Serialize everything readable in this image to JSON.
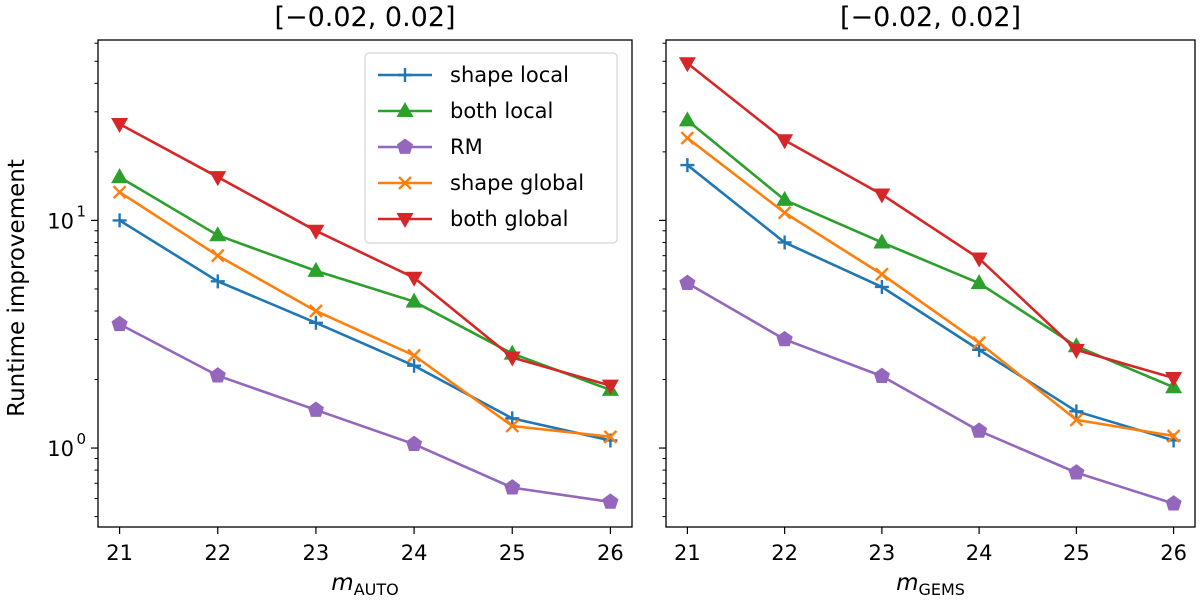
{
  "chart_data": {
    "type": "line",
    "ylabel": "Runtime improvement",
    "yscale": "log",
    "ylim": [
      0.45,
      62
    ],
    "xlim": [
      20.78,
      26.22
    ],
    "x_ticks": [
      21,
      22,
      23,
      24,
      25,
      26
    ],
    "y_ticks": [
      {
        "value": 1,
        "base": "10",
        "exp": "0"
      },
      {
        "value": 10,
        "base": "10",
        "exp": "1"
      }
    ],
    "legend": {
      "placement": "top-right of left panel",
      "entries": [
        "shape local",
        "both local",
        "RM",
        "shape global",
        "both global"
      ]
    },
    "panels": [
      {
        "title": "[−0.02, 0.02]",
        "xlabel_main": "m",
        "xlabel_sub": "AUTO",
        "x": [
          21,
          22,
          23,
          24,
          25,
          26
        ],
        "series": [
          {
            "name": "shape local",
            "color": "#1f77b4",
            "marker": "plus",
            "values": [
              10.0,
              5.4,
              3.55,
              2.3,
              1.35,
              1.08
            ]
          },
          {
            "name": "both local",
            "color": "#2ca02c",
            "marker": "triangle-up",
            "values": [
              15.5,
              8.6,
              6.0,
              4.4,
              2.6,
              1.8
            ]
          },
          {
            "name": "RM",
            "color": "#9467bd",
            "marker": "pentagon",
            "values": [
              3.5,
              2.08,
              1.47,
              1.04,
              0.67,
              0.58
            ]
          },
          {
            "name": "shape global",
            "color": "#ff7f0e",
            "marker": "x",
            "values": [
              13.3,
              7.0,
              4.0,
              2.55,
              1.25,
              1.12
            ]
          },
          {
            "name": "both global",
            "color": "#d62728",
            "marker": "triangle-down",
            "values": [
              26.5,
              15.5,
              9.0,
              5.6,
              2.5,
              1.88
            ]
          }
        ]
      },
      {
        "title": "[−0.02, 0.02]",
        "xlabel_main": "m",
        "xlabel_sub": "GEMS",
        "x": [
          21,
          22,
          23,
          24,
          25,
          26
        ],
        "series": [
          {
            "name": "shape local",
            "color": "#1f77b4",
            "marker": "plus",
            "values": [
              17.5,
              8.0,
              5.1,
              2.7,
              1.45,
              1.08
            ]
          },
          {
            "name": "both local",
            "color": "#2ca02c",
            "marker": "triangle-up",
            "values": [
              27.5,
              12.3,
              8.0,
              5.3,
              2.8,
              1.85
            ]
          },
          {
            "name": "RM",
            "color": "#9467bd",
            "marker": "pentagon",
            "values": [
              5.3,
              3.0,
              2.07,
              1.19,
              0.78,
              0.57
            ]
          },
          {
            "name": "shape global",
            "color": "#ff7f0e",
            "marker": "x",
            "values": [
              23.0,
              10.8,
              5.8,
              2.9,
              1.33,
              1.13
            ]
          },
          {
            "name": "both global",
            "color": "#d62728",
            "marker": "triangle-down",
            "values": [
              49.0,
              22.5,
              13.0,
              6.8,
              2.7,
              2.03
            ]
          }
        ]
      }
    ]
  }
}
